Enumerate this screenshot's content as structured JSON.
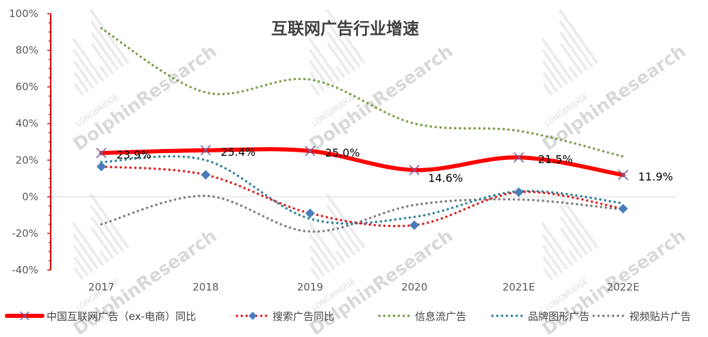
{
  "chart_data": {
    "type": "line",
    "title": "互联网广告行业增速",
    "categories": [
      "2017",
      "2018",
      "2019",
      "2020",
      "2021E",
      "2022E"
    ],
    "ylim": [
      -40,
      100
    ],
    "yticks": [
      -40,
      -20,
      0,
      20,
      40,
      60,
      80,
      100
    ],
    "ytick_labels": [
      "-40%",
      "-20%",
      "0%",
      "20%",
      "40%",
      "60%",
      "80%",
      "100%"
    ],
    "series": [
      {
        "name": "中国互联网广告（ex-电商）同比",
        "values": [
          23.9,
          25.4,
          25.0,
          14.6,
          21.5,
          11.9
        ],
        "labels": [
          "23.9%",
          "25.4%",
          "25.0%",
          "14.6%",
          "21.5%",
          "11.9%"
        ],
        "color": "#ff0000",
        "style": "solid",
        "marker": "x"
      },
      {
        "name": "搜索广告同比",
        "values": [
          16.5,
          12.0,
          -9.0,
          -15.5,
          2.5,
          -6.5
        ],
        "color": "#e02020",
        "style": "dotted",
        "marker": "diamond",
        "marker_color": "#4a7ebb"
      },
      {
        "name": "信息流广告",
        "values": [
          92.0,
          57.0,
          64.0,
          40.0,
          36.0,
          22.0
        ],
        "color": "#77a046",
        "style": "dotted",
        "marker": "none"
      },
      {
        "name": "品牌图形广告",
        "values": [
          19.0,
          20.0,
          -12.0,
          -11.0,
          3.0,
          -3.5
        ],
        "color": "#31859c",
        "style": "dotted",
        "marker": "none"
      },
      {
        "name": "视频贴片广告",
        "values": [
          -15.0,
          0.5,
          -19.0,
          -4.5,
          -1.5,
          -7.0
        ],
        "color": "#7f7f7f",
        "style": "dotted",
        "marker": "none"
      }
    ],
    "legend_position": "bottom",
    "watermark": {
      "brand": "LONGBRIDGE",
      "text": "DolphinResearch"
    }
  }
}
